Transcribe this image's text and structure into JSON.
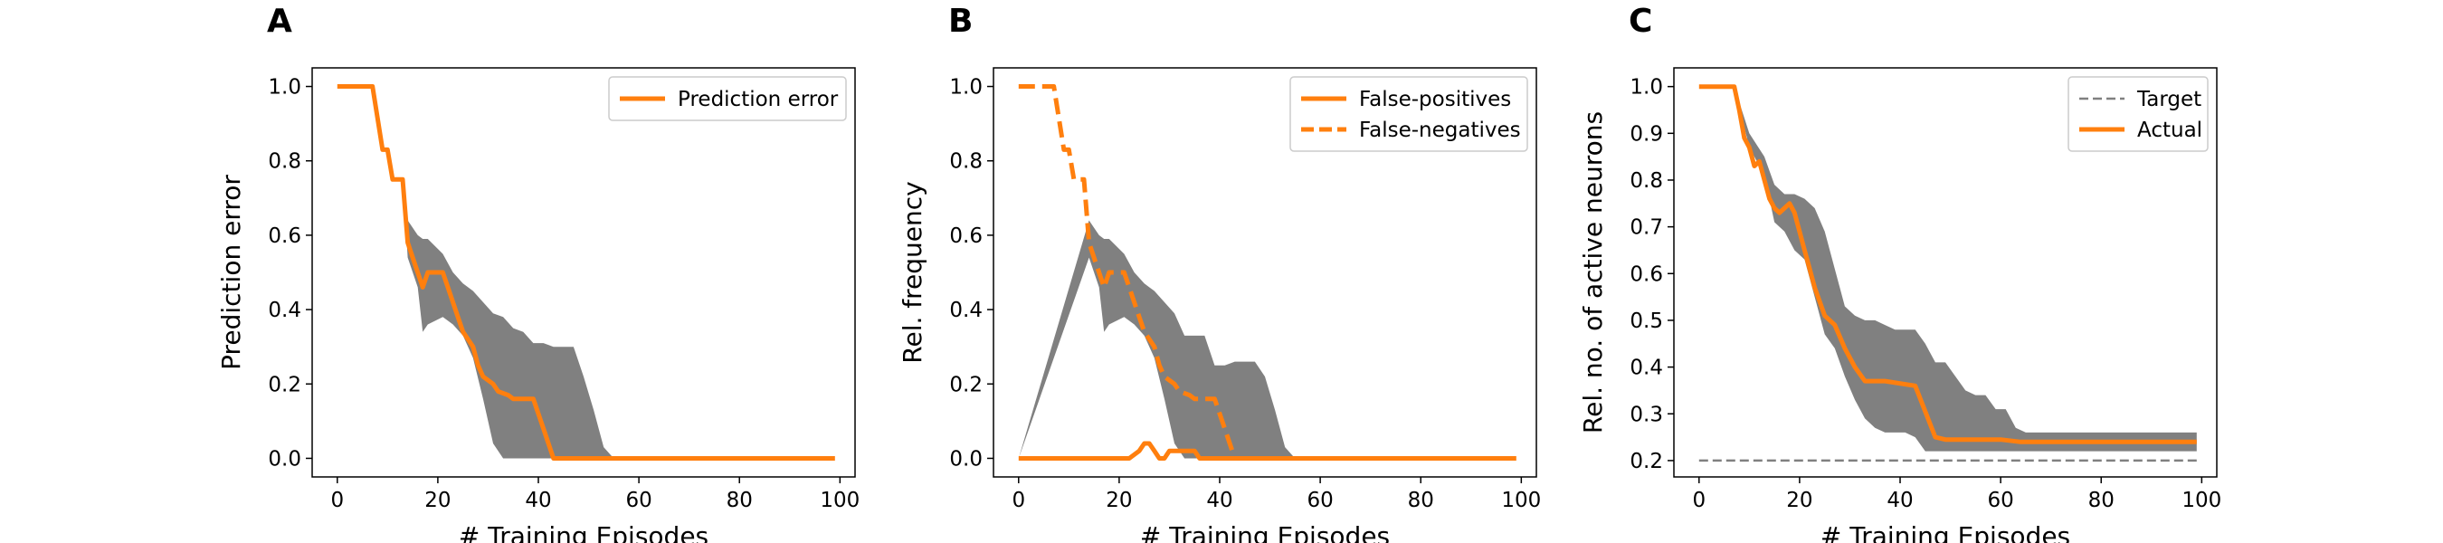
{
  "colors": {
    "line": "#ff7f0e",
    "band": "#808080",
    "target": "#808080",
    "axis": "#000000"
  },
  "chart_data": [
    {
      "type": "line",
      "panel_label": "A",
      "xlabel": "# Training Episodes",
      "ylabel": "Prediction error",
      "xlim": [
        -5,
        103
      ],
      "ylim": [
        -0.05,
        1.05
      ],
      "xticks": [
        0,
        20,
        40,
        60,
        80,
        100
      ],
      "yticks": [
        0.0,
        0.2,
        0.4,
        0.6,
        0.8,
        1.0
      ],
      "yticks_labels": [
        "0.0",
        "0.2",
        "0.4",
        "0.6",
        "0.8",
        "1.0"
      ],
      "legend_position": "top-right",
      "series": [
        {
          "name": "Prediction error",
          "style": "solid",
          "x": [
            0,
            7,
            9,
            10,
            11,
            13,
            14,
            15,
            17,
            18,
            21,
            22,
            24,
            25,
            27,
            28,
            29,
            31,
            32,
            34,
            35,
            39,
            41,
            43,
            44,
            99
          ],
          "y": [
            1.0,
            1.0,
            0.83,
            0.83,
            0.75,
            0.75,
            0.58,
            0.54,
            0.46,
            0.5,
            0.5,
            0.46,
            0.38,
            0.34,
            0.3,
            0.25,
            0.22,
            0.2,
            0.18,
            0.17,
            0.16,
            0.16,
            0.08,
            0.0,
            0.0,
            0.0
          ]
        }
      ],
      "band": {
        "x": [
          0,
          7,
          13,
          14,
          16,
          17,
          18,
          21,
          23,
          25,
          27,
          29,
          31,
          33,
          35,
          37,
          39,
          41,
          43,
          45,
          47,
          49,
          51,
          53,
          55,
          57,
          99
        ],
        "lower": [
          1.0,
          1.0,
          0.75,
          0.54,
          0.46,
          0.34,
          0.36,
          0.38,
          0.36,
          0.33,
          0.27,
          0.16,
          0.04,
          0.0,
          0.0,
          0.0,
          0.0,
          0.0,
          0.0,
          0.0,
          0.0,
          0.0,
          0.0,
          0.0,
          0.0,
          0.0,
          0.0
        ],
        "upper": [
          1.0,
          1.0,
          0.75,
          0.64,
          0.6,
          0.59,
          0.59,
          0.55,
          0.5,
          0.47,
          0.45,
          0.42,
          0.39,
          0.38,
          0.35,
          0.34,
          0.31,
          0.31,
          0.3,
          0.3,
          0.3,
          0.22,
          0.13,
          0.03,
          0.0,
          0.0,
          0.0
        ]
      }
    },
    {
      "type": "line",
      "panel_label": "B",
      "xlabel": "# Training Episodes",
      "ylabel": "Rel. frequency",
      "xlim": [
        -5,
        103
      ],
      "ylim": [
        -0.05,
        1.05
      ],
      "xticks": [
        0,
        20,
        40,
        60,
        80,
        100
      ],
      "yticks": [
        0.0,
        0.2,
        0.4,
        0.6,
        0.8,
        1.0
      ],
      "yticks_labels": [
        "0.0",
        "0.2",
        "0.4",
        "0.6",
        "0.8",
        "1.0"
      ],
      "legend_position": "top-right",
      "series": [
        {
          "name": "False-positives",
          "style": "solid",
          "x": [
            0,
            21,
            22,
            24,
            25,
            26,
            27,
            28,
            29,
            30,
            31,
            33,
            35,
            36,
            99
          ],
          "y": [
            0.0,
            0.0,
            0.0,
            0.02,
            0.04,
            0.04,
            0.02,
            0.0,
            0.0,
            0.02,
            0.02,
            0.02,
            0.02,
            0.0,
            0.0
          ]
        },
        {
          "name": "False-negatives",
          "style": "dashed",
          "x": [
            0,
            7,
            9,
            10,
            11,
            13,
            14,
            15,
            17,
            18,
            21,
            22,
            24,
            25,
            27,
            28,
            29,
            31,
            32,
            34,
            35,
            39,
            41,
            43,
            44
          ],
          "y": [
            1.0,
            1.0,
            0.83,
            0.83,
            0.75,
            0.75,
            0.58,
            0.54,
            0.46,
            0.5,
            0.5,
            0.46,
            0.38,
            0.34,
            0.3,
            0.25,
            0.22,
            0.2,
            0.18,
            0.17,
            0.16,
            0.16,
            0.08,
            0.0,
            0.0
          ]
        }
      ],
      "band": {
        "x": [
          0,
          14,
          16,
          17,
          18,
          21,
          23,
          25,
          27,
          29,
          31,
          33,
          35,
          37,
          39,
          41,
          43,
          45,
          47,
          49,
          51,
          53,
          55,
          57,
          99
        ],
        "lower": [
          0.0,
          0.54,
          0.46,
          0.34,
          0.36,
          0.38,
          0.36,
          0.33,
          0.27,
          0.16,
          0.04,
          0.0,
          0.0,
          0.0,
          0.0,
          0.0,
          0.0,
          0.0,
          0.0,
          0.0,
          0.0,
          0.0,
          0.0,
          0.0,
          0.0
        ],
        "upper": [
          0.0,
          0.64,
          0.6,
          0.59,
          0.59,
          0.55,
          0.5,
          0.47,
          0.45,
          0.42,
          0.39,
          0.33,
          0.33,
          0.33,
          0.25,
          0.25,
          0.26,
          0.26,
          0.26,
          0.22,
          0.13,
          0.03,
          0.0,
          0.0,
          0.0
        ]
      }
    },
    {
      "type": "line",
      "panel_label": "C",
      "xlabel": "# Training Episodes",
      "ylabel": "Rel. no. of active neurons",
      "xlim": [
        -5,
        103
      ],
      "ylim": [
        0.165,
        1.04
      ],
      "xticks": [
        0,
        20,
        40,
        60,
        80,
        100
      ],
      "yticks": [
        0.2,
        0.3,
        0.4,
        0.5,
        0.6,
        0.7,
        0.8,
        0.9,
        1.0
      ],
      "yticks_labels": [
        "0.2",
        "0.3",
        "0.4",
        "0.5",
        "0.6",
        "0.7",
        "0.8",
        "0.9",
        "1.0"
      ],
      "legend_position": "top-right",
      "series": [
        {
          "name": "Target",
          "style": "dashed",
          "color": "#808080",
          "x": [
            0,
            99
          ],
          "y": [
            0.2,
            0.2
          ]
        },
        {
          "name": "Actual",
          "style": "solid",
          "x": [
            0,
            7,
            8,
            9,
            10,
            11,
            12,
            13,
            14,
            15,
            16,
            17,
            18,
            19,
            21,
            23,
            25,
            27,
            29,
            31,
            33,
            35,
            37,
            43,
            47,
            49,
            60,
            64,
            99
          ],
          "y": [
            1.0,
            1.0,
            0.95,
            0.89,
            0.87,
            0.83,
            0.84,
            0.8,
            0.76,
            0.74,
            0.73,
            0.74,
            0.75,
            0.73,
            0.65,
            0.57,
            0.51,
            0.49,
            0.44,
            0.4,
            0.37,
            0.37,
            0.37,
            0.36,
            0.25,
            0.245,
            0.245,
            0.24,
            0.24
          ]
        }
      ],
      "band": {
        "x": [
          0,
          7,
          10,
          13,
          15,
          17,
          19,
          21,
          23,
          25,
          27,
          29,
          31,
          33,
          35,
          37,
          39,
          41,
          43,
          45,
          47,
          49,
          51,
          53,
          55,
          57,
          59,
          61,
          63,
          65,
          99
        ],
        "lower": [
          1.0,
          1.0,
          0.87,
          0.81,
          0.71,
          0.69,
          0.65,
          0.63,
          0.55,
          0.47,
          0.44,
          0.38,
          0.33,
          0.29,
          0.27,
          0.26,
          0.26,
          0.26,
          0.25,
          0.22,
          0.22,
          0.22,
          0.22,
          0.22,
          0.22,
          0.22,
          0.22,
          0.22,
          0.22,
          0.22,
          0.22
        ],
        "upper": [
          1.0,
          1.0,
          0.9,
          0.85,
          0.79,
          0.77,
          0.77,
          0.76,
          0.74,
          0.69,
          0.61,
          0.53,
          0.51,
          0.5,
          0.5,
          0.49,
          0.48,
          0.48,
          0.48,
          0.45,
          0.41,
          0.41,
          0.38,
          0.35,
          0.34,
          0.34,
          0.31,
          0.31,
          0.27,
          0.26,
          0.26
        ]
      }
    }
  ]
}
